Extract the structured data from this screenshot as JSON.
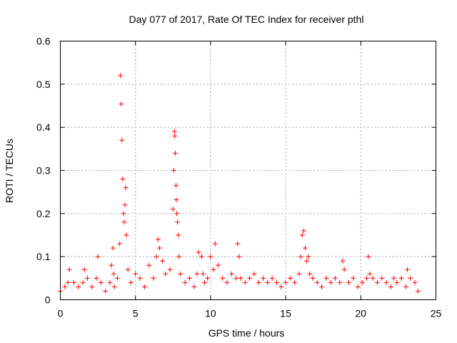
{
  "chart_data": {
    "type": "scatter",
    "title": "Day 077 of 2017, Rate Of TEC Index for receiver pthl",
    "xlabel": "GPS time / hours",
    "ylabel": "ROTI / TECUs",
    "xlim": [
      0,
      25
    ],
    "ylim": [
      0,
      0.6
    ],
    "x_ticks": [
      0,
      5,
      10,
      15,
      20,
      25
    ],
    "x_tick_labels": [
      "0",
      "5",
      "10",
      "15",
      "20",
      "25"
    ],
    "y_ticks": [
      0,
      0.1,
      0.2,
      0.3,
      0.4,
      0.5,
      0.6
    ],
    "y_tick_labels": [
      "0",
      "0.1",
      "0.2",
      "0.3",
      "0.4",
      "0.5",
      "0.6"
    ],
    "grid": true,
    "legend": "none",
    "marker": "plus",
    "marker_color": "#ff0000",
    "series": [
      {
        "x": [
          0.0,
          0.3,
          0.5,
          0.6,
          0.9,
          1.2,
          1.5,
          1.6,
          1.8,
          2.1,
          2.4,
          2.5,
          2.7,
          3.0,
          3.3,
          3.4,
          3.5,
          3.55,
          3.6,
          3.8,
          3.95,
          4.0,
          4.05,
          4.1,
          4.15,
          4.2,
          4.25,
          4.3,
          4.35,
          4.4,
          4.5,
          4.7,
          5.0,
          5.3,
          5.6,
          5.9,
          6.2,
          6.4,
          6.5,
          6.6,
          6.8,
          7.0,
          7.3,
          7.5,
          7.55,
          7.6,
          7.62,
          7.65,
          7.7,
          7.72,
          7.75,
          7.8,
          7.85,
          7.9,
          8.0,
          8.3,
          8.6,
          8.9,
          9.1,
          9.2,
          9.4,
          9.5,
          9.6,
          9.8,
          10.0,
          10.2,
          10.3,
          10.5,
          10.8,
          11.1,
          11.4,
          11.7,
          11.8,
          11.9,
          12.0,
          12.3,
          12.6,
          12.9,
          13.2,
          13.5,
          13.8,
          14.1,
          14.4,
          14.7,
          15.0,
          15.3,
          15.6,
          15.9,
          16.0,
          16.1,
          16.2,
          16.3,
          16.4,
          16.5,
          16.6,
          16.8,
          17.1,
          17.4,
          17.7,
          18.0,
          18.3,
          18.6,
          18.8,
          18.9,
          19.2,
          19.5,
          19.8,
          20.1,
          20.4,
          20.5,
          20.6,
          20.8,
          21.1,
          21.4,
          21.7,
          22.0,
          22.2,
          22.4,
          22.7,
          23.0,
          23.1,
          23.3,
          23.6,
          23.8
        ],
        "y": [
          0.02,
          0.03,
          0.04,
          0.07,
          0.04,
          0.03,
          0.04,
          0.07,
          0.05,
          0.03,
          0.05,
          0.1,
          0.04,
          0.02,
          0.04,
          0.08,
          0.12,
          0.06,
          0.03,
          0.05,
          0.13,
          0.52,
          0.454,
          0.37,
          0.28,
          0.2,
          0.18,
          0.22,
          0.26,
          0.15,
          0.07,
          0.04,
          0.06,
          0.05,
          0.03,
          0.08,
          0.05,
          0.1,
          0.14,
          0.12,
          0.09,
          0.06,
          0.07,
          0.21,
          0.3,
          0.39,
          0.38,
          0.34,
          0.265,
          0.232,
          0.2,
          0.18,
          0.15,
          0.1,
          0.06,
          0.04,
          0.05,
          0.03,
          0.06,
          0.11,
          0.1,
          0.06,
          0.04,
          0.05,
          0.1,
          0.07,
          0.13,
          0.08,
          0.05,
          0.04,
          0.06,
          0.05,
          0.13,
          0.1,
          0.05,
          0.04,
          0.05,
          0.06,
          0.04,
          0.05,
          0.04,
          0.05,
          0.04,
          0.03,
          0.04,
          0.05,
          0.04,
          0.06,
          0.1,
          0.15,
          0.16,
          0.12,
          0.09,
          0.1,
          0.06,
          0.05,
          0.04,
          0.03,
          0.05,
          0.04,
          0.05,
          0.04,
          0.09,
          0.07,
          0.04,
          0.05,
          0.03,
          0.04,
          0.05,
          0.1,
          0.06,
          0.05,
          0.04,
          0.05,
          0.04,
          0.03,
          0.05,
          0.04,
          0.05,
          0.03,
          0.07,
          0.05,
          0.04,
          0.02
        ]
      }
    ]
  }
}
